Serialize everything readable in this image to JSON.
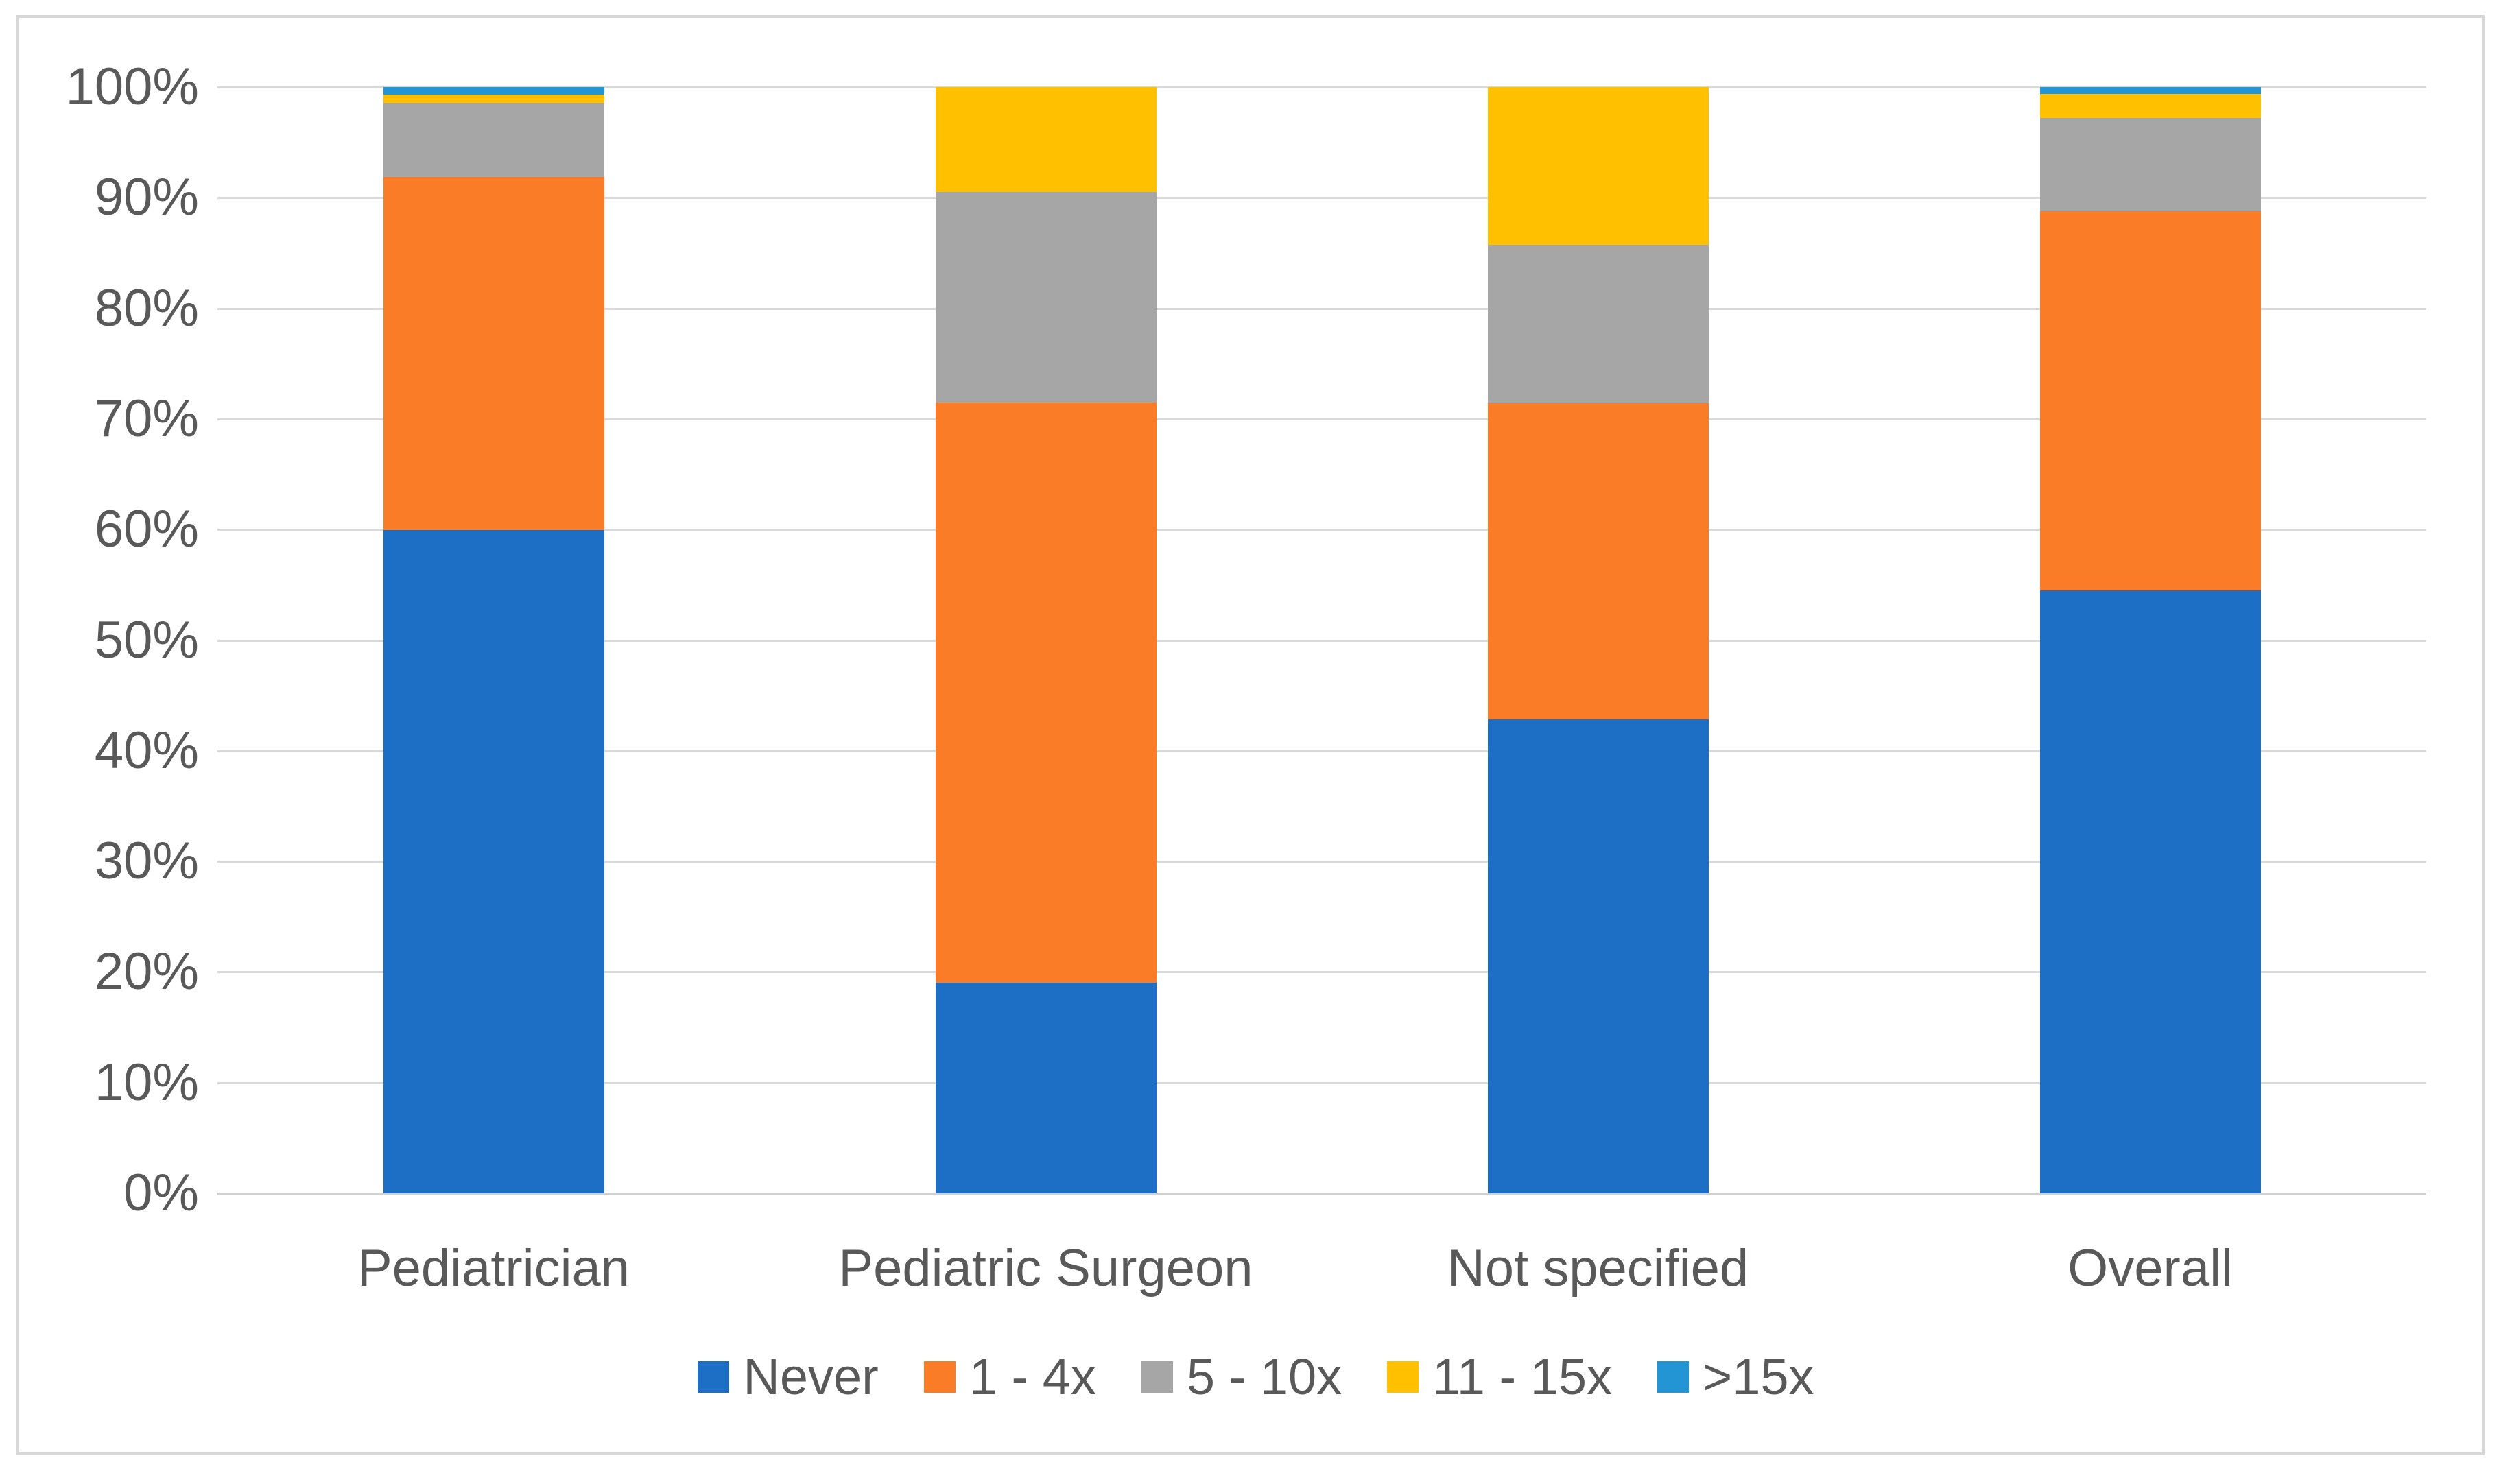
{
  "chart_data": {
    "type": "bar",
    "subtype": "stacked-100-percent-column",
    "title": "",
    "xlabel": "",
    "ylabel": "",
    "categories": [
      "Pediatrician",
      "Pediatric Surgeon",
      "Not specified",
      "Overall"
    ],
    "series": [
      {
        "name": "Never",
        "color": "#1d6fc5",
        "values": [
          60.0,
          19.0,
          42.9,
          54.5
        ]
      },
      {
        "name": "1 - 4x",
        "color": "#fb7c26",
        "values": [
          32.0,
          52.4,
          28.6,
          34.3
        ]
      },
      {
        "name": "5 - 10x",
        "color": "#a6a6a6",
        "values": [
          6.7,
          19.0,
          14.3,
          8.4
        ]
      },
      {
        "name": "11 - 15x",
        "color": "#ffc000",
        "values": [
          0.7,
          9.5,
          14.3,
          2.2
        ]
      },
      {
        "name": ">15x",
        "color": "#2395d4",
        "values": [
          0.7,
          0.0,
          0.0,
          0.6
        ]
      }
    ],
    "ylim": [
      0,
      100
    ],
    "y_ticks": [
      "0%",
      "10%",
      "20%",
      "30%",
      "40%",
      "50%",
      "60%",
      "70%",
      "80%",
      "90%",
      "100%"
    ],
    "grid": true,
    "gridline_color": "#d9d9d9",
    "axis_text_color": "#595959",
    "frame_border_color": "#d8d8d8",
    "background_color": "#ffffff",
    "legend_position": "bottom"
  }
}
